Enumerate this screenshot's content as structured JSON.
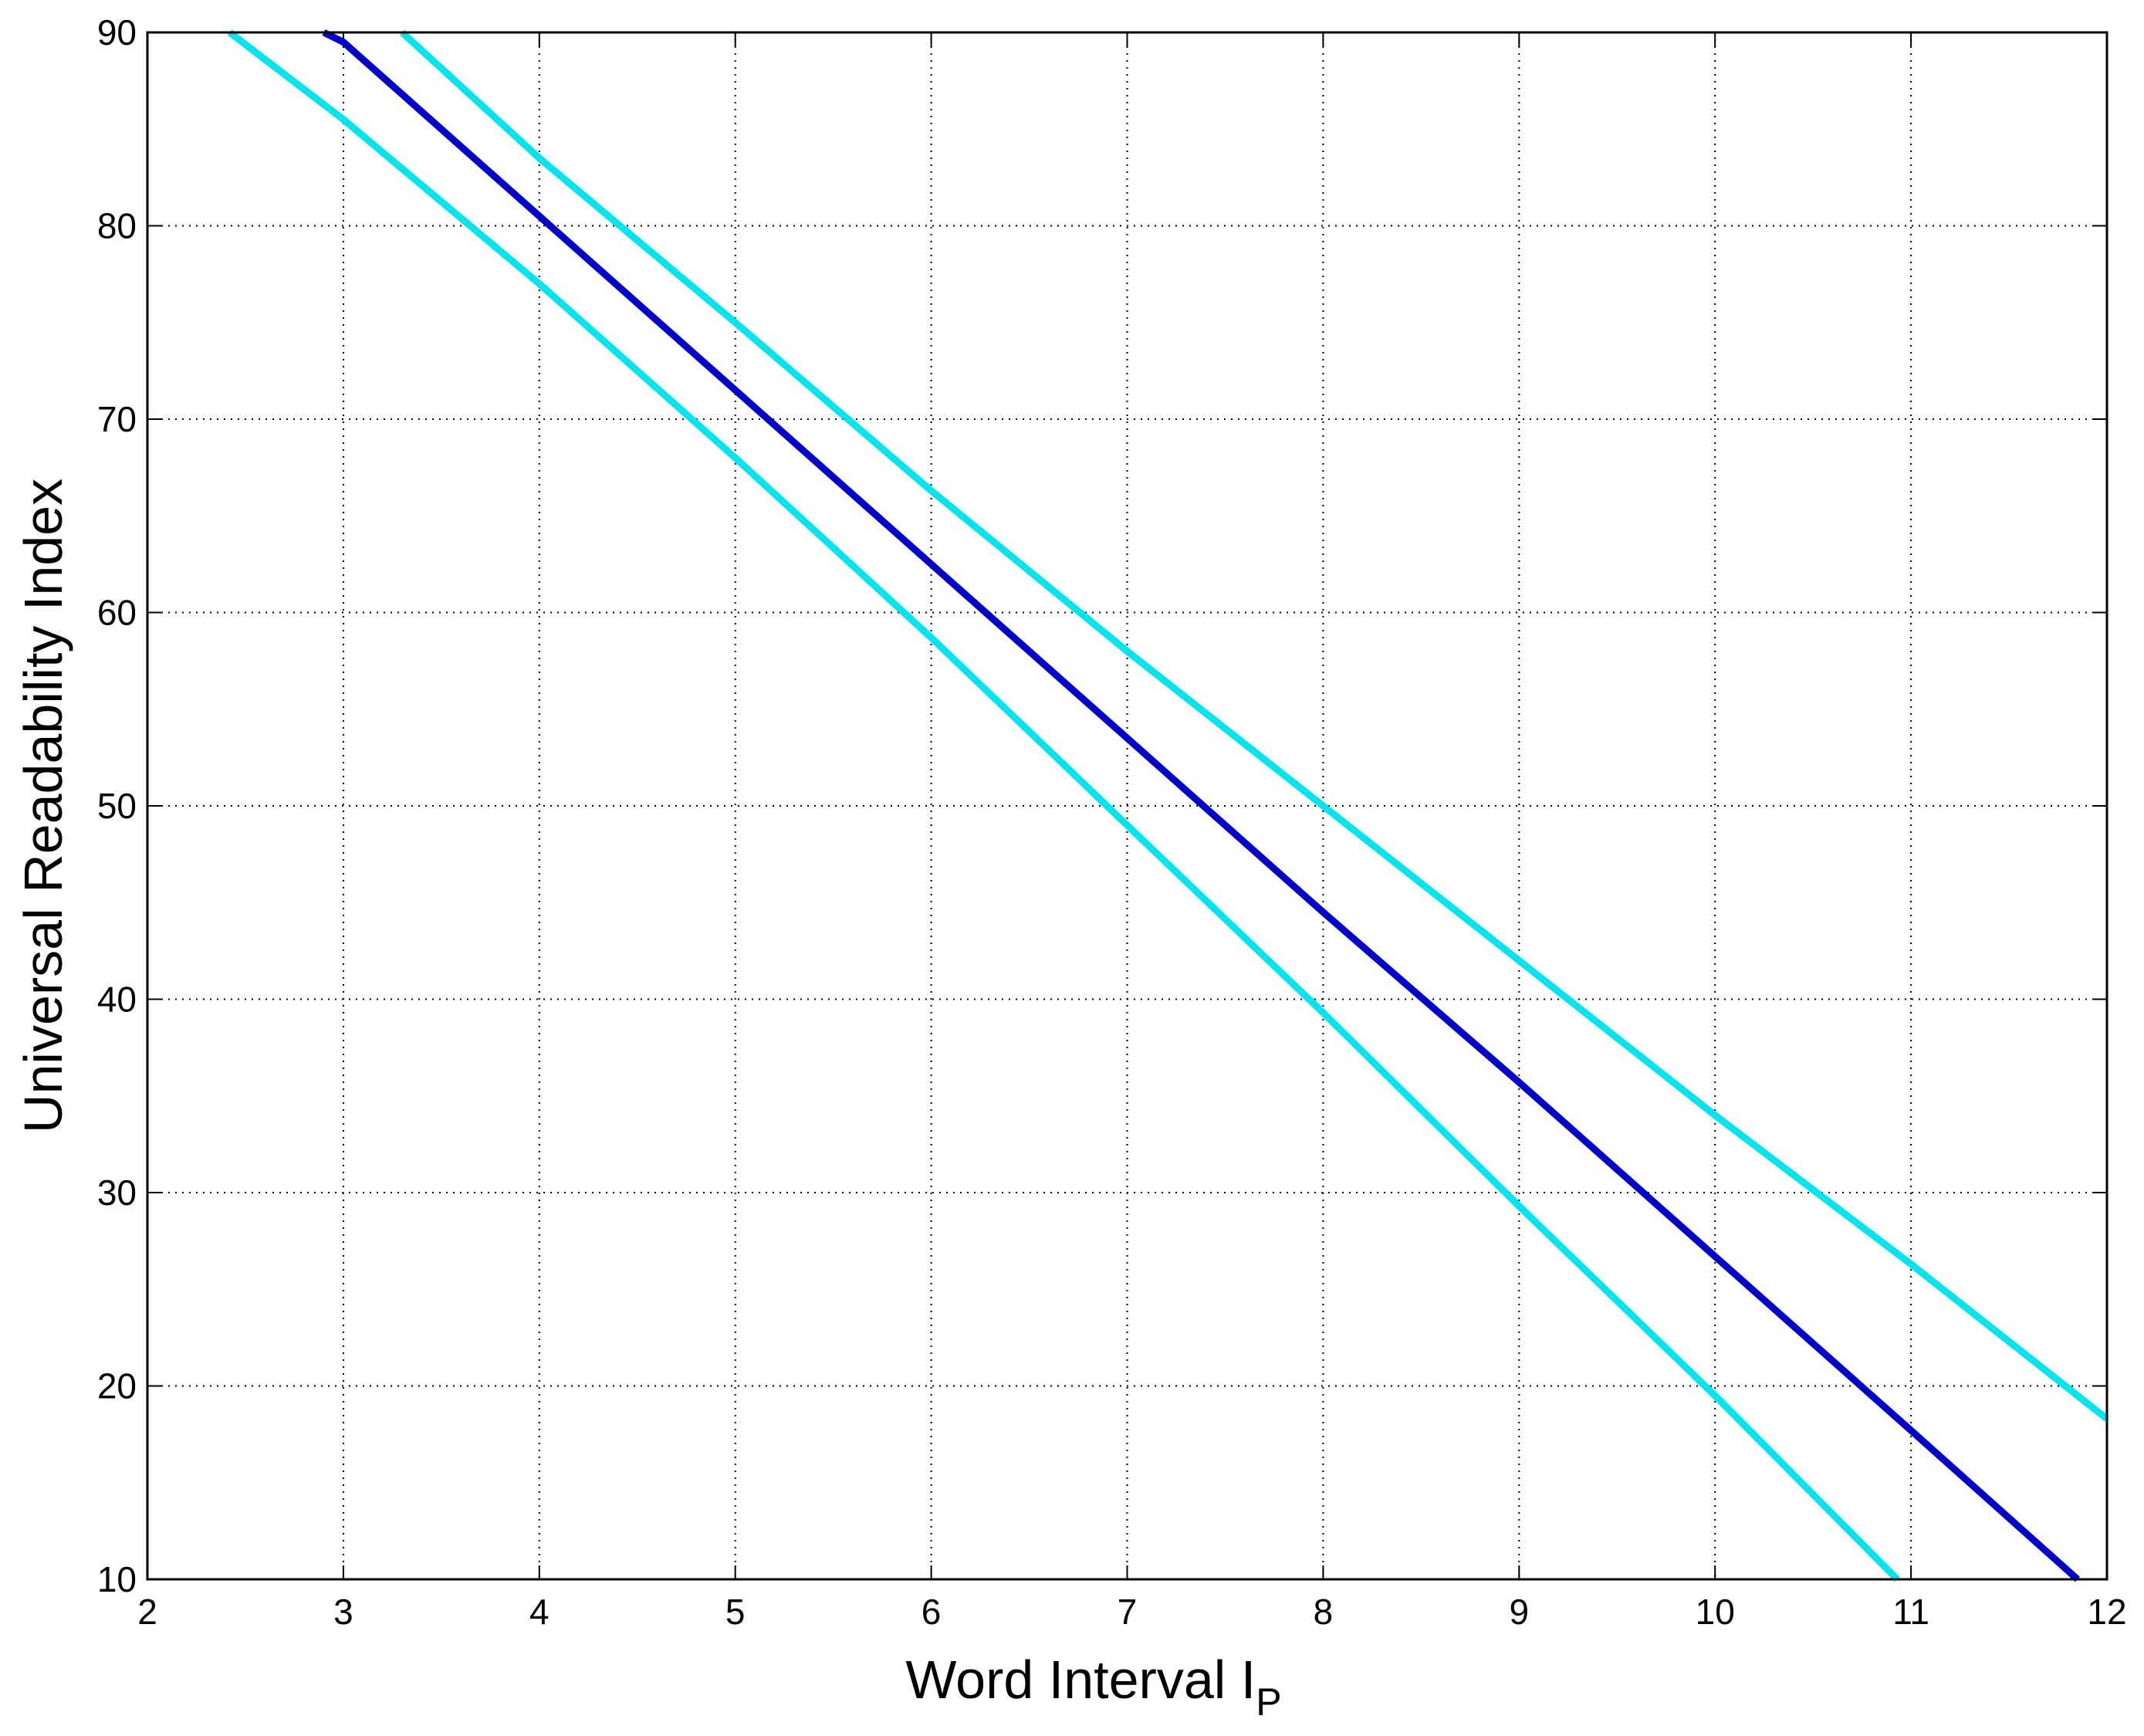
{
  "chart_data": {
    "type": "line",
    "x_label": "Word Interval I",
    "x_label_subscript": "P",
    "y_label": "Universal Readability Index",
    "xlim": [
      2,
      12
    ],
    "xticks": [
      2,
      3,
      4,
      5,
      6,
      7,
      8,
      9,
      10,
      11,
      12
    ],
    "ylim": [
      10,
      90
    ],
    "yticks": [
      10,
      20,
      30,
      40,
      50,
      60,
      70,
      80,
      90
    ],
    "grid": true,
    "series": [
      {
        "color": "#00e5ee",
        "x": [
          3.3,
          4,
          5,
          6,
          7,
          8,
          9,
          10,
          11,
          12
        ],
        "values": [
          90,
          83.5,
          75,
          66.3,
          58,
          50,
          42,
          34,
          26.3,
          18.3
        ]
      },
      {
        "color": "#0000cc",
        "x": [
          2.9,
          3,
          4,
          5,
          6,
          7,
          8,
          9,
          10,
          11,
          11.85
        ],
        "values": [
          90,
          89.5,
          80.5,
          71.5,
          62.5,
          53.5,
          44.5,
          35.7,
          26.7,
          17.7,
          10
        ]
      },
      {
        "color": "#00e5ee",
        "x": [
          2.42,
          3,
          4,
          5,
          6,
          7,
          8,
          9,
          10,
          10.93
        ],
        "values": [
          90,
          85.5,
          77,
          68,
          58.7,
          49,
          39.3,
          29.3,
          19.5,
          10
        ]
      }
    ]
  }
}
